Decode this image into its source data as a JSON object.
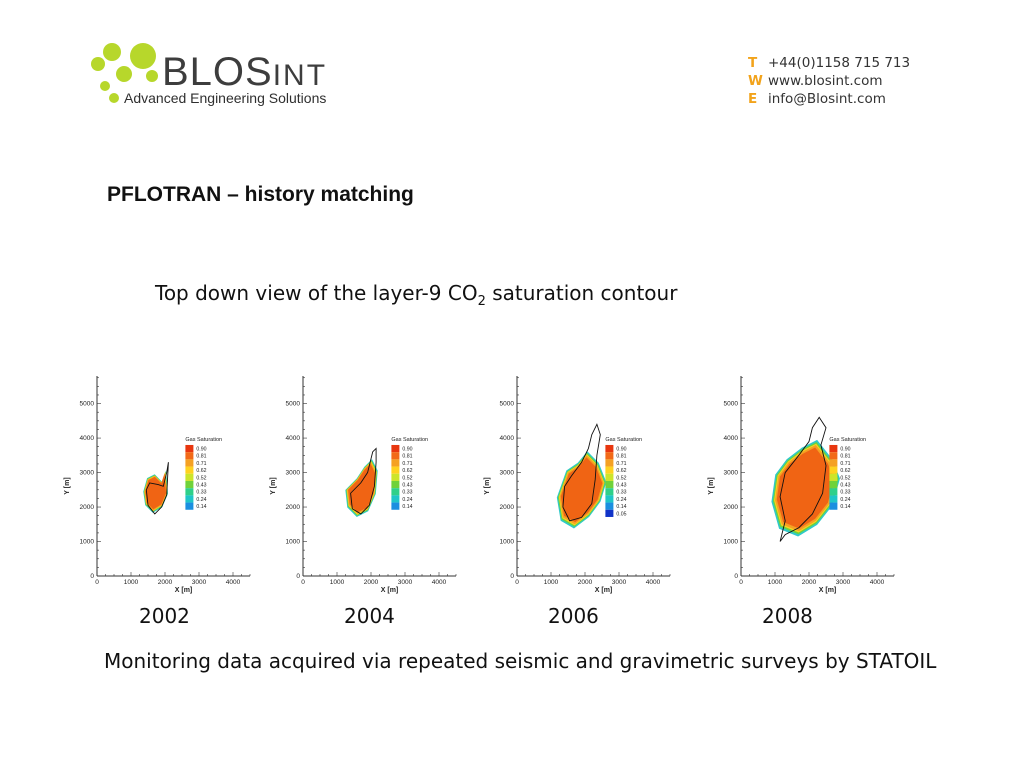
{
  "header": {
    "brand_main": "BLOS",
    "brand_suffix": "INT",
    "tagline": "Advanced Engineering Solutions",
    "contact": [
      {
        "key": "T",
        "value": "+44(0)1158 715 713"
      },
      {
        "key": "W",
        "value": "www.blosint.com"
      },
      {
        "key": "E",
        "value": "info@Blosint.com"
      }
    ]
  },
  "slide": {
    "title": "PFLOTRAN – history matching",
    "subtitle_pre": "Top down view of the layer-9 CO",
    "subtitle_sub": "2",
    "subtitle_post": " saturation contour",
    "footer": "Monitoring data acquired via repeated seismic and gravimetric surveys by STATOIL"
  },
  "colors": {
    "logo_green": "#b7d72b",
    "accent_orange": "#f2a31b",
    "plume_core": "#f06414"
  },
  "chart_data": [
    {
      "type": "heatmap",
      "year": "2002",
      "xlabel": "X [m]",
      "ylabel": "Y [m]",
      "xlim": [
        0,
        4500
      ],
      "ylim": [
        0,
        5800
      ],
      "xticks": [
        0,
        1000,
        2000,
        3000,
        4000
      ],
      "yticks": [
        0,
        1000,
        2000,
        3000,
        4000,
        5000
      ],
      "legend_title": "Gas Saturation",
      "legend_levels": [
        "0.90",
        "0.81",
        "0.71",
        "0.62",
        "0.52",
        "0.43",
        "0.33",
        "0.24",
        "0.14"
      ],
      "plume_outline": [
        [
          1700,
          2900
        ],
        [
          1900,
          2700
        ],
        [
          2000,
          3000
        ],
        [
          2050,
          2400
        ],
        [
          1900,
          2050
        ],
        [
          1650,
          1900
        ],
        [
          1450,
          2100
        ],
        [
          1400,
          2450
        ],
        [
          1500,
          2800
        ]
      ],
      "observed_outline": [
        [
          1550,
          2700
        ],
        [
          1800,
          2650
        ],
        [
          1950,
          2600
        ],
        [
          2050,
          3000
        ],
        [
          2100,
          3300
        ],
        [
          2050,
          2350
        ],
        [
          1900,
          2000
        ],
        [
          1700,
          1800
        ],
        [
          1500,
          2050
        ],
        [
          1450,
          2500
        ]
      ]
    },
    {
      "type": "heatmap",
      "year": "2004",
      "xlabel": "X [m]",
      "ylabel": "Y [m]",
      "xlim": [
        0,
        4500
      ],
      "ylim": [
        0,
        5800
      ],
      "xticks": [
        0,
        1000,
        2000,
        3000,
        4000
      ],
      "yticks": [
        0,
        1000,
        2000,
        3000,
        4000,
        5000
      ],
      "legend_title": "Gas Saturation",
      "legend_levels": [
        "0.90",
        "0.81",
        "0.71",
        "0.62",
        "0.52",
        "0.43",
        "0.33",
        "0.24",
        "0.14"
      ],
      "plume_outline": [
        [
          1600,
          2800
        ],
        [
          1800,
          3100
        ],
        [
          2000,
          3300
        ],
        [
          2150,
          3000
        ],
        [
          2100,
          2400
        ],
        [
          1900,
          1950
        ],
        [
          1600,
          1800
        ],
        [
          1350,
          2050
        ],
        [
          1300,
          2500
        ]
      ],
      "observed_outline": [
        [
          1700,
          2700
        ],
        [
          1900,
          3000
        ],
        [
          2000,
          3400
        ],
        [
          2050,
          3600
        ],
        [
          2150,
          3700
        ],
        [
          2150,
          3300
        ],
        [
          2100,
          2600
        ],
        [
          1950,
          2050
        ],
        [
          1700,
          1800
        ],
        [
          1450,
          1950
        ],
        [
          1400,
          2400
        ]
      ]
    },
    {
      "type": "heatmap",
      "year": "2006",
      "xlabel": "X [m]",
      "ylabel": "Y [m]",
      "xlim": [
        0,
        4500
      ],
      "ylim": [
        0,
        5800
      ],
      "xticks": [
        0,
        1000,
        2000,
        3000,
        4000
      ],
      "yticks": [
        0,
        1000,
        2000,
        3000,
        4000,
        5000
      ],
      "legend_title": "Gas Saturation",
      "legend_levels": [
        "0.90",
        "0.81",
        "0.71",
        "0.62",
        "0.52",
        "0.43",
        "0.33",
        "0.24",
        "0.14",
        "0.05"
      ],
      "plume_outline": [
        [
          1500,
          3000
        ],
        [
          1800,
          3200
        ],
        [
          2050,
          3500
        ],
        [
          2350,
          3200
        ],
        [
          2550,
          2700
        ],
        [
          2400,
          2200
        ],
        [
          2100,
          1800
        ],
        [
          1700,
          1500
        ],
        [
          1350,
          1700
        ],
        [
          1250,
          2300
        ]
      ],
      "observed_outline": [
        [
          1600,
          2900
        ],
        [
          1900,
          3300
        ],
        [
          2100,
          3700
        ],
        [
          2200,
          4100
        ],
        [
          2350,
          4400
        ],
        [
          2450,
          4100
        ],
        [
          2350,
          3500
        ],
        [
          2300,
          2800
        ],
        [
          2200,
          2100
        ],
        [
          1900,
          1700
        ],
        [
          1550,
          1600
        ],
        [
          1350,
          2000
        ],
        [
          1400,
          2600
        ]
      ]
    },
    {
      "type": "heatmap",
      "year": "2008",
      "xlabel": "X [m]",
      "ylabel": "Y [m]",
      "xlim": [
        0,
        4500
      ],
      "ylim": [
        0,
        5800
      ],
      "xticks": [
        0,
        1000,
        2000,
        3000,
        4000
      ],
      "yticks": [
        0,
        1000,
        2000,
        3000,
        4000,
        5000
      ],
      "legend_title": "Gas Saturation",
      "legend_levels": [
        "0.90",
        "0.81",
        "0.71",
        "0.62",
        "0.52",
        "0.43",
        "0.33",
        "0.24",
        "0.14"
      ],
      "plume_outline": [
        [
          1400,
          3300
        ],
        [
          1800,
          3600
        ],
        [
          2200,
          3800
        ],
        [
          2600,
          3300
        ],
        [
          2800,
          2800
        ],
        [
          2600,
          2100
        ],
        [
          2200,
          1600
        ],
        [
          1700,
          1300
        ],
        [
          1200,
          1500
        ],
        [
          1000,
          2200
        ],
        [
          1100,
          2900
        ]
      ],
      "observed_outline": [
        [
          1300,
          3000
        ],
        [
          1700,
          3500
        ],
        [
          2000,
          3900
        ],
        [
          2100,
          4300
        ],
        [
          2300,
          4600
        ],
        [
          2500,
          4300
        ],
        [
          2350,
          3800
        ],
        [
          2500,
          3200
        ],
        [
          2400,
          2400
        ],
        [
          2100,
          1800
        ],
        [
          1700,
          1400
        ],
        [
          1300,
          1200
        ],
        [
          1150,
          1000
        ],
        [
          1300,
          1600
        ],
        [
          1150,
          2300
        ]
      ]
    }
  ]
}
